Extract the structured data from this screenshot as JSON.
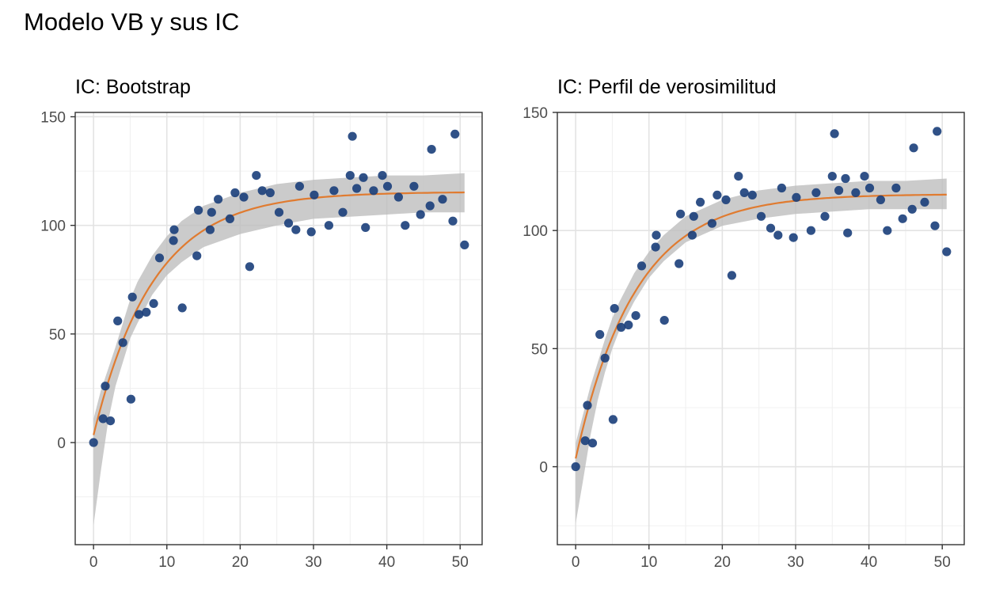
{
  "title": "Modelo VB y sus IC",
  "colors": {
    "points": "#1a3e7a",
    "curve": "#e07b30",
    "band": "#bdbdbd",
    "grid_major": "#e3e3e3",
    "grid_minor": "#f0f0f0",
    "panel_border": "#333333"
  },
  "chart_data": [
    {
      "type": "scatter",
      "title": "IC: Bootstrap",
      "xlabel": "",
      "ylabel": "",
      "xlim": [
        -2.5,
        53
      ],
      "ylim": [
        -47,
        152
      ],
      "xticks": [
        0,
        10,
        20,
        30,
        40,
        50
      ],
      "yticks": [
        0,
        50,
        100,
        150
      ],
      "tick_labels_x": [
        "0",
        "10",
        "20",
        "30",
        "40",
        "50"
      ],
      "tick_labels_y": [
        "0",
        "50",
        "100",
        "150"
      ],
      "grid": true,
      "legend": "none",
      "points": [
        [
          0,
          0
        ],
        [
          1.3,
          11
        ],
        [
          1.6,
          26
        ],
        [
          2.3,
          10
        ],
        [
          3.3,
          56
        ],
        [
          4,
          46
        ],
        [
          5.1,
          20
        ],
        [
          5.3,
          67
        ],
        [
          6.2,
          59
        ],
        [
          7.2,
          60
        ],
        [
          8.2,
          64
        ],
        [
          9,
          85
        ],
        [
          10.9,
          93
        ],
        [
          11,
          98
        ],
        [
          12.1,
          62
        ],
        [
          14.1,
          86
        ],
        [
          14.3,
          107
        ],
        [
          15.9,
          98
        ],
        [
          16.1,
          106
        ],
        [
          17,
          112
        ],
        [
          18.6,
          103
        ],
        [
          19.3,
          115
        ],
        [
          20.5,
          113
        ],
        [
          21.3,
          81
        ],
        [
          22.2,
          123
        ],
        [
          23,
          116
        ],
        [
          24.1,
          115
        ],
        [
          25.3,
          106
        ],
        [
          26.6,
          101
        ],
        [
          27.6,
          98
        ],
        [
          28.1,
          118
        ],
        [
          29.7,
          97
        ],
        [
          30.1,
          114
        ],
        [
          32.1,
          100
        ],
        [
          32.8,
          116
        ],
        [
          34,
          106
        ],
        [
          35,
          123
        ],
        [
          35.3,
          141
        ],
        [
          35.9,
          117
        ],
        [
          36.8,
          122
        ],
        [
          37.1,
          99
        ],
        [
          38.2,
          116
        ],
        [
          39.4,
          123
        ],
        [
          40.1,
          118
        ],
        [
          41.6,
          113
        ],
        [
          42.5,
          100
        ],
        [
          43.7,
          118
        ],
        [
          44.6,
          105
        ],
        [
          45.9,
          109
        ],
        [
          46.1,
          135
        ],
        [
          47.6,
          112
        ],
        [
          49,
          102
        ],
        [
          49.3,
          142
        ],
        [
          50.6,
          91
        ]
      ],
      "fit": {
        "name": "von Bertalanffy",
        "Linf": 115.4,
        "K": 0.123,
        "t0": -0.25,
        "x_range": [
          0,
          50.6
        ]
      },
      "ci_band": {
        "x": [
          0,
          1,
          2,
          3,
          4,
          5,
          6,
          8,
          10,
          12,
          15,
          20,
          25,
          30,
          35,
          40,
          45,
          50.6
        ],
        "lower": [
          -38,
          -13,
          10,
          26,
          37,
          48,
          55,
          68,
          77,
          83,
          90,
          96,
          100,
          103,
          104,
          105,
          106,
          106
        ],
        "upper": [
          11,
          24,
          34,
          44,
          55,
          66,
          74,
          86,
          95,
          102,
          109,
          115,
          119,
          121,
          122,
          123,
          123,
          124
        ]
      }
    },
    {
      "type": "scatter",
      "title": "IC: Perfil de verosimilitud",
      "xlabel": "",
      "ylabel": "",
      "xlim": [
        -2.5,
        53
      ],
      "ylim": [
        -33,
        150
      ],
      "xticks": [
        0,
        10,
        20,
        30,
        40,
        50
      ],
      "yticks": [
        0,
        50,
        100,
        150
      ],
      "tick_labels_x": [
        "0",
        "10",
        "20",
        "30",
        "40",
        "50"
      ],
      "tick_labels_y": [
        "0",
        "50",
        "100",
        "150"
      ],
      "grid": true,
      "legend": "none",
      "points": [
        [
          0,
          0
        ],
        [
          1.3,
          11
        ],
        [
          1.6,
          26
        ],
        [
          2.3,
          10
        ],
        [
          3.3,
          56
        ],
        [
          4,
          46
        ],
        [
          5.1,
          20
        ],
        [
          5.3,
          67
        ],
        [
          6.2,
          59
        ],
        [
          7.2,
          60
        ],
        [
          8.2,
          64
        ],
        [
          9,
          85
        ],
        [
          10.9,
          93
        ],
        [
          11,
          98
        ],
        [
          12.1,
          62
        ],
        [
          14.1,
          86
        ],
        [
          14.3,
          107
        ],
        [
          15.9,
          98
        ],
        [
          16.1,
          106
        ],
        [
          17,
          112
        ],
        [
          18.6,
          103
        ],
        [
          19.3,
          115
        ],
        [
          20.5,
          113
        ],
        [
          21.3,
          81
        ],
        [
          22.2,
          123
        ],
        [
          23,
          116
        ],
        [
          24.1,
          115
        ],
        [
          25.3,
          106
        ],
        [
          26.6,
          101
        ],
        [
          27.6,
          98
        ],
        [
          28.1,
          118
        ],
        [
          29.7,
          97
        ],
        [
          30.1,
          114
        ],
        [
          32.1,
          100
        ],
        [
          32.8,
          116
        ],
        [
          34,
          106
        ],
        [
          35,
          123
        ],
        [
          35.3,
          141
        ],
        [
          35.9,
          117
        ],
        [
          36.8,
          122
        ],
        [
          37.1,
          99
        ],
        [
          38.2,
          116
        ],
        [
          39.4,
          123
        ],
        [
          40.1,
          118
        ],
        [
          41.6,
          113
        ],
        [
          42.5,
          100
        ],
        [
          43.7,
          118
        ],
        [
          44.6,
          105
        ],
        [
          45.9,
          109
        ],
        [
          46.1,
          135
        ],
        [
          47.6,
          112
        ],
        [
          49,
          102
        ],
        [
          49.3,
          142
        ],
        [
          50.6,
          91
        ]
      ],
      "fit": {
        "name": "von Bertalanffy",
        "Linf": 115.4,
        "K": 0.123,
        "t0": -0.25,
        "x_range": [
          0,
          50.6
        ]
      },
      "ci_band": {
        "x": [
          0,
          1,
          2,
          3,
          4,
          5,
          6,
          8,
          10,
          12,
          15,
          20,
          25,
          30,
          35,
          40,
          45,
          50.6
        ],
        "lower": [
          -24,
          -6,
          13,
          28,
          40,
          50,
          58,
          70,
          80,
          87,
          95,
          102,
          105,
          107,
          108,
          109,
          109,
          109
        ],
        "upper": [
          10,
          22,
          34,
          44,
          54,
          63,
          70,
          82,
          91,
          98,
          106,
          113,
          117,
          119,
          120,
          121,
          121,
          122
        ]
      }
    }
  ]
}
